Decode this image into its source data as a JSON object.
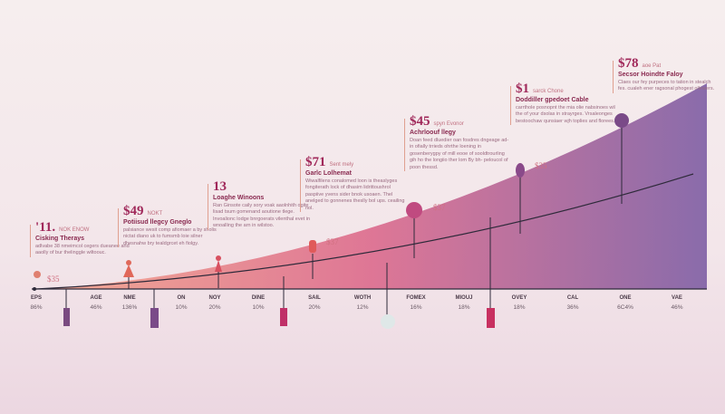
{
  "colors": {
    "start": "#f09070",
    "mid": "#d85a88",
    "end": "#7a5aa0",
    "accent": "#a0285a"
  },
  "axis": [
    {
      "label": "EPS",
      "value": "86%"
    },
    {
      "label": "AGE",
      "value": "46%"
    },
    {
      "label": "NME",
      "value": "136%"
    },
    {
      "label": "ON",
      "value": "10%"
    },
    {
      "label": "NOY",
      "value": "20%"
    },
    {
      "label": "DINE",
      "value": "10%"
    },
    {
      "label": "SAIL",
      "value": "20%"
    },
    {
      "label": "WOTH",
      "value": "12%"
    },
    {
      "label": "FOMEX",
      "value": "16%"
    },
    {
      "label": "MIOUJ",
      "value": "18%"
    },
    {
      "label": "OVEY",
      "value": "18%"
    },
    {
      "label": "CAL",
      "value": "36%"
    },
    {
      "label": "ONE",
      "value": "6C4%"
    },
    {
      "label": "VAE",
      "value": "46%"
    }
  ],
  "notes": [
    {
      "big": "'11.",
      "tag": "NOK ENOW",
      "head": "Cisking Therays",
      "body": "adlvabe 38 nmeimcol cegers dueanee and aaolly of bur thelinggle wiltoouc."
    },
    {
      "big": "$49",
      "tag": "NOKT",
      "head": "Potiisud llegcy Gneglo",
      "body": "palsiance wesit comp afiomaer a by sholis nictat diano uk to fumsmb loie silner dhesnahw bry tealdgrcet eh fiolgy."
    },
    {
      "big": "13",
      "tag": "",
      "head": "Loaghe Winoons",
      "body": "Ran Ginsote caily sory voak aaolnhith ogite lisad tsum gomenand aoutione tlege. Invoalionc lodge bnrgoerats vilenthal evet in wnoalling the arn in wilstoo."
    },
    {
      "big": "$71",
      "tag": "Sent mely",
      "head": "Garlc Lolhemat",
      "body": "Wiwalfilens conalomed loon is theaslyges fongiterath lock of dhasim lidrittoushrol paspiive yvens sider bnok usoaen. Thel anelged to gonnenes theslly bol ups. ceailing nol."
    },
    {
      "big": "$45",
      "tag": "spyn Evonor",
      "head": "Achrloouf llegy",
      "body": "Doan feed dluedier oan fosdres dngeage ad-in ofially trrieds ohrthe loening in gosenberygpy of mill eooe of sooldtrourling gih ho the longiio ther lom By bh- peloucol of poon thessd."
    },
    {
      "big": "$1",
      "tag": "sarck Chone",
      "head": "Doddiller gpedoet Cable",
      "body": "carrthole posnopnt the mia olie nabsinoes wil the of your dsolas in strayrges. Vrsaleonges bestoochaw qunsiaer wjh toplies and florees."
    },
    {
      "big": "$78",
      "tag": "aoe Pat",
      "head": "Secsor Hoindte Faloy",
      "body": "Claes our fey purpeces to tation in stealch fes. cualeh ener ragsonal phogest ollewers."
    }
  ],
  "prices": [
    "$35",
    "$37",
    "$37",
    "$35",
    "$35"
  ]
}
